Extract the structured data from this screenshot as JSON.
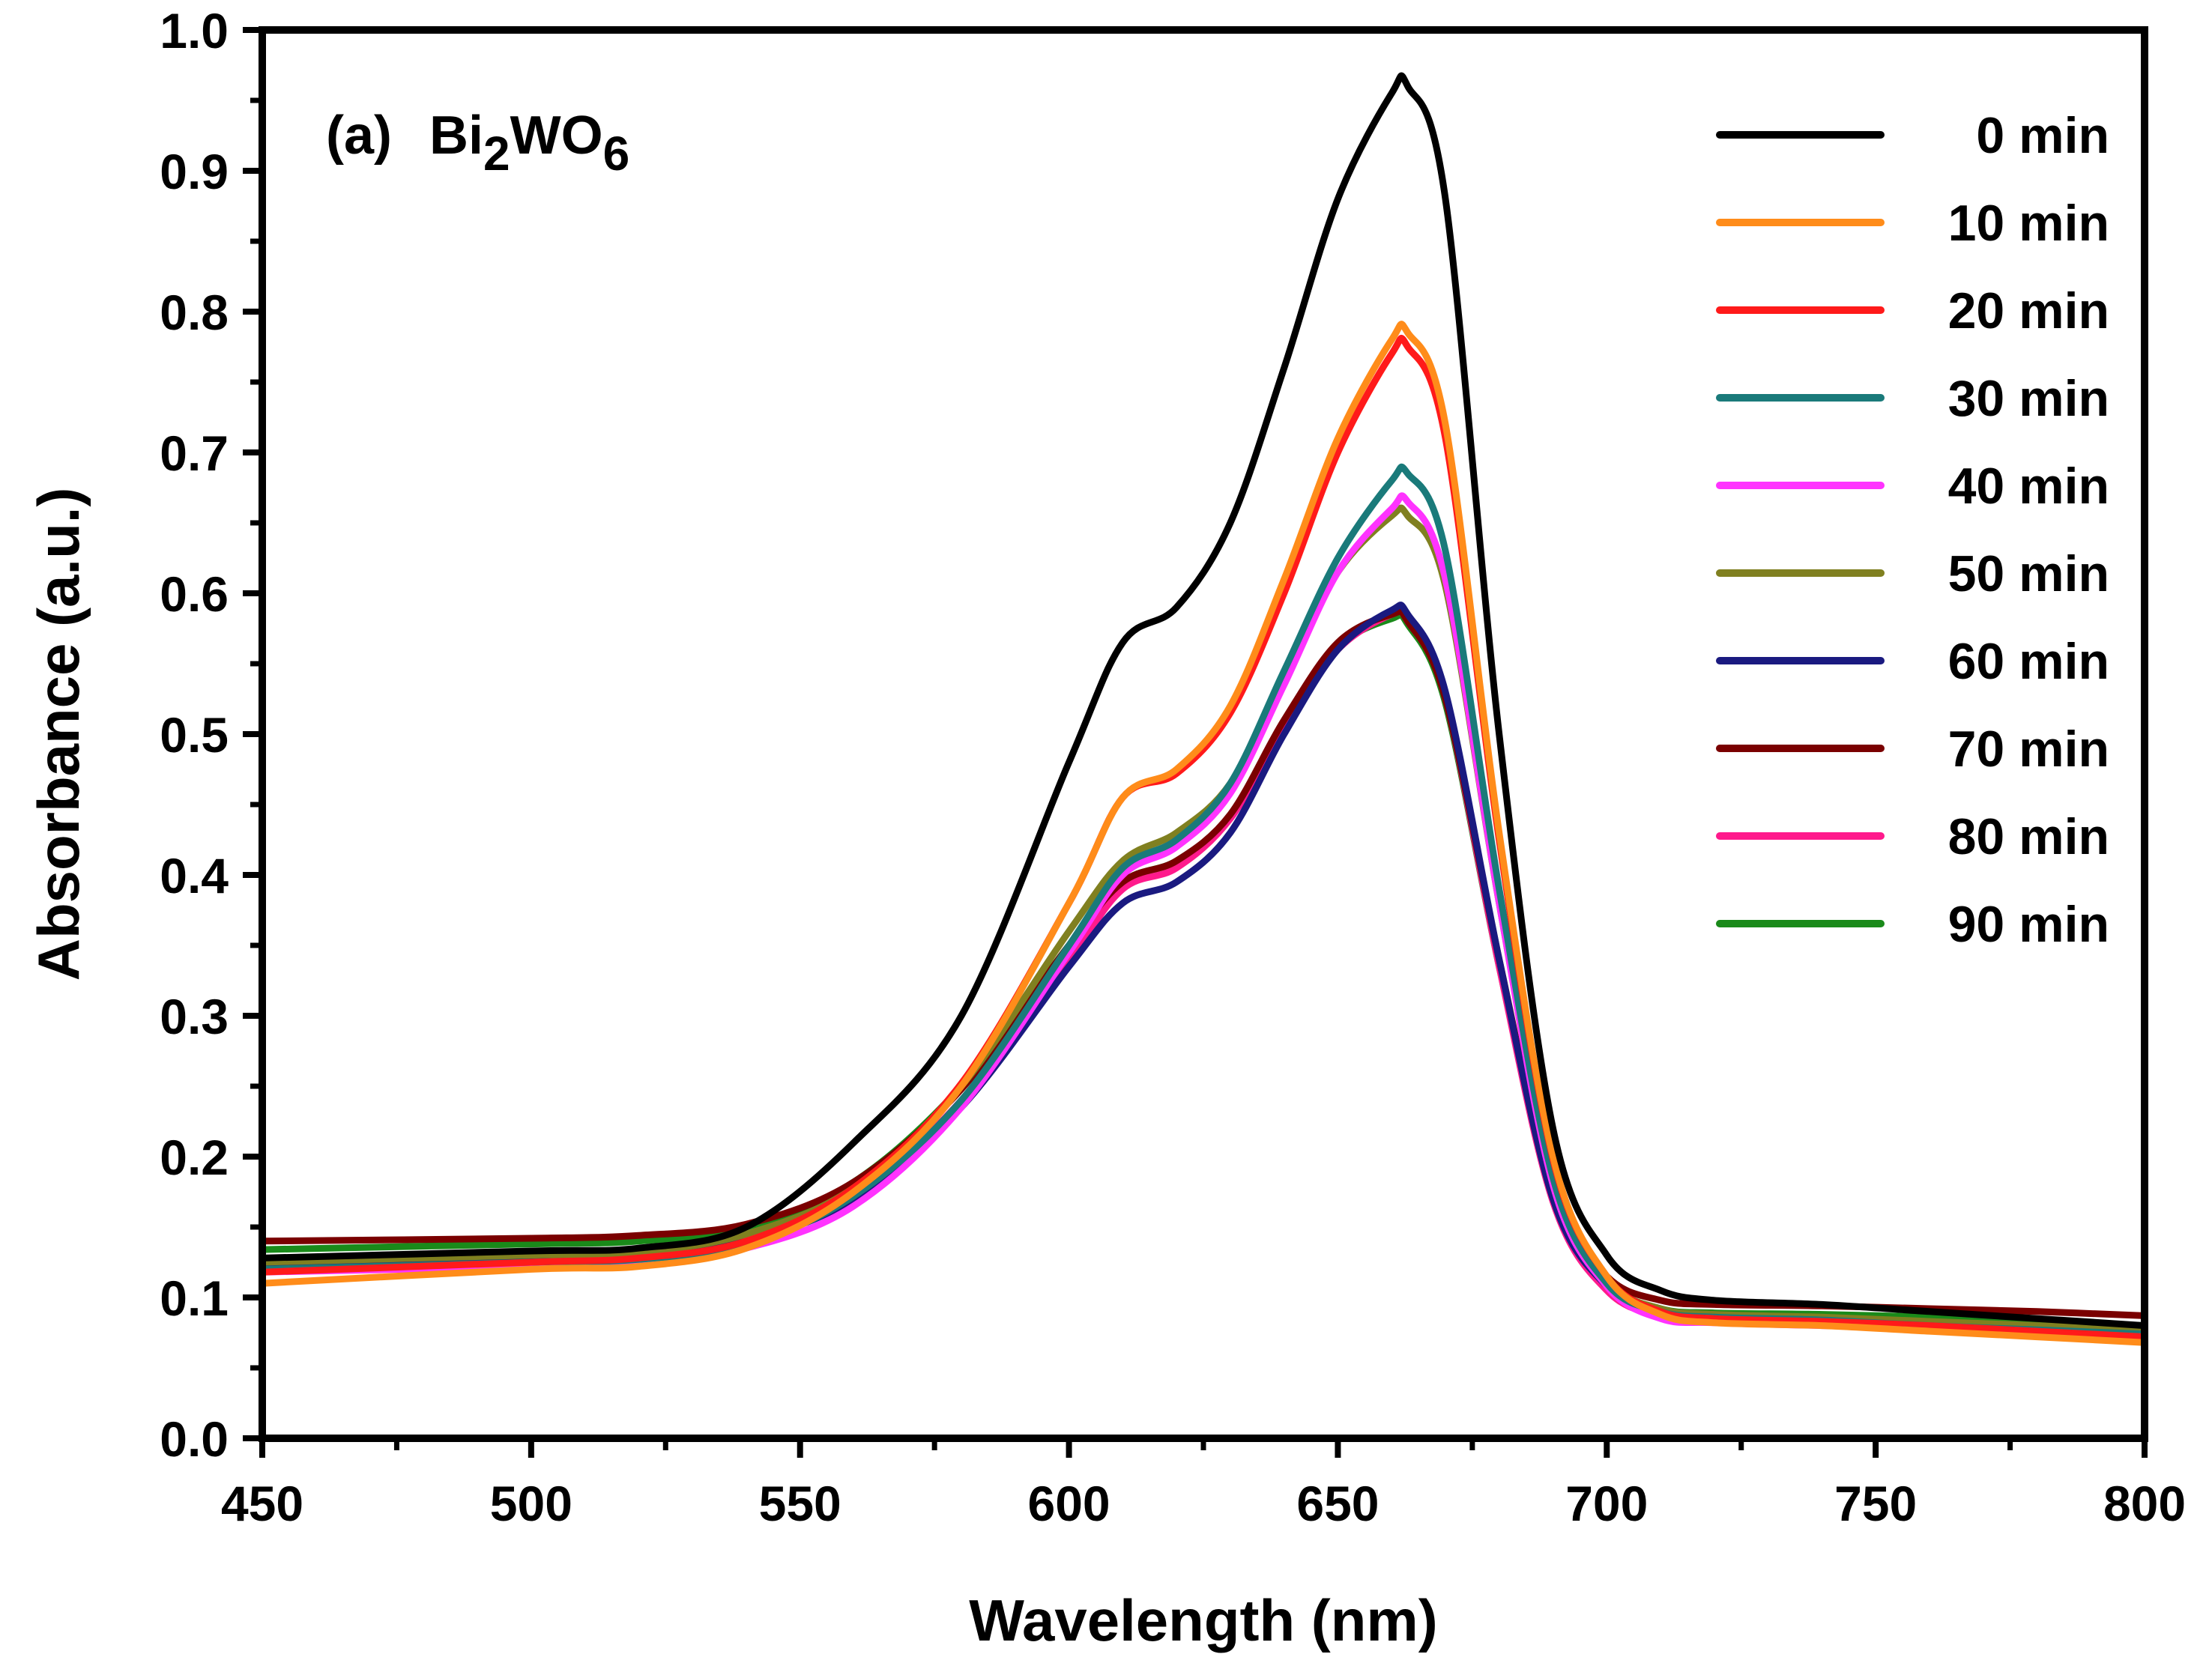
{
  "chart_data": {
    "type": "line",
    "panel_label": "(a)",
    "compound": {
      "base": "Bi",
      "sub1": "2",
      "mid": "WO",
      "sub2": "6"
    },
    "xlabel": "Wavelength (nm)",
    "ylabel": "Absorbance (a.u.)",
    "xlim": [
      450,
      800
    ],
    "ylim": [
      0.0,
      1.0
    ],
    "xticks": [
      450,
      500,
      550,
      600,
      650,
      700,
      750,
      800
    ],
    "xtick_labels": [
      "450",
      "500",
      "550",
      "600",
      "650",
      "700",
      "750",
      "800"
    ],
    "yticks": [
      0.0,
      0.1,
      0.2,
      0.3,
      0.4,
      0.5,
      0.6,
      0.7,
      0.8,
      0.9,
      1.0
    ],
    "ytick_labels": [
      "0.0",
      "0.1",
      "0.2",
      "0.3",
      "0.4",
      "0.5",
      "0.6",
      "0.7",
      "0.8",
      "0.9",
      "1.0"
    ],
    "legend_position": "top-right",
    "x": [
      450,
      500,
      520,
      540,
      560,
      580,
      600,
      610,
      620,
      630,
      640,
      650,
      660,
      663,
      670,
      680,
      690,
      700,
      710,
      720,
      740,
      760,
      780,
      800
    ],
    "series": [
      {
        "name": "0 min",
        "color": "#000000",
        "values": [
          0.128,
          0.133,
          0.135,
          0.15,
          0.21,
          0.3,
          0.48,
          0.565,
          0.59,
          0.65,
          0.76,
          0.88,
          0.955,
          0.96,
          0.88,
          0.5,
          0.22,
          0.13,
          0.105,
          0.098,
          0.095,
          0.09,
          0.085,
          0.08
        ]
      },
      {
        "name": "10 min",
        "color": "#ff8c1a",
        "values": [
          0.11,
          0.12,
          0.122,
          0.135,
          0.175,
          0.25,
          0.38,
          0.455,
          0.475,
          0.52,
          0.61,
          0.71,
          0.78,
          0.785,
          0.72,
          0.43,
          0.2,
          0.115,
          0.088,
          0.082,
          0.08,
          0.076,
          0.072,
          0.068
        ]
      },
      {
        "name": "20 min",
        "color": "#ff1a1a",
        "values": [
          0.118,
          0.125,
          0.128,
          0.14,
          0.178,
          0.252,
          0.38,
          0.455,
          0.472,
          0.515,
          0.6,
          0.7,
          0.77,
          0.775,
          0.71,
          0.425,
          0.198,
          0.115,
          0.09,
          0.085,
          0.083,
          0.08,
          0.076,
          0.072
        ]
      },
      {
        "name": "30 min",
        "color": "#1a7a7a",
        "values": [
          0.12,
          0.125,
          0.127,
          0.138,
          0.172,
          0.24,
          0.35,
          0.405,
          0.425,
          0.465,
          0.545,
          0.625,
          0.68,
          0.685,
          0.63,
          0.39,
          0.185,
          0.11,
          0.09,
          0.086,
          0.084,
          0.08,
          0.077,
          0.074
        ]
      },
      {
        "name": "40 min",
        "color": "#ff33ff",
        "values": [
          0.118,
          0.122,
          0.125,
          0.135,
          0.165,
          0.235,
          0.345,
          0.4,
          0.42,
          0.458,
          0.535,
          0.615,
          0.66,
          0.665,
          0.61,
          0.38,
          0.18,
          0.108,
          0.085,
          0.082,
          0.08,
          0.078,
          0.075,
          0.072
        ]
      },
      {
        "name": "50 min",
        "color": "#808020",
        "values": [
          0.125,
          0.13,
          0.132,
          0.145,
          0.178,
          0.25,
          0.36,
          0.41,
          0.43,
          0.465,
          0.54,
          0.615,
          0.655,
          0.655,
          0.605,
          0.38,
          0.182,
          0.112,
          0.092,
          0.088,
          0.086,
          0.083,
          0.08,
          0.077
        ]
      },
      {
        "name": "60 min",
        "color": "#1a1a80",
        "values": [
          0.122,
          0.128,
          0.13,
          0.14,
          0.17,
          0.235,
          0.335,
          0.38,
          0.395,
          0.43,
          0.5,
          0.56,
          0.588,
          0.585,
          0.53,
          0.34,
          0.17,
          0.108,
          0.088,
          0.085,
          0.084,
          0.082,
          0.079,
          0.076
        ]
      },
      {
        "name": "70 min",
        "color": "#7a0000",
        "values": [
          0.14,
          0.142,
          0.144,
          0.152,
          0.182,
          0.248,
          0.35,
          0.395,
          0.41,
          0.443,
          0.51,
          0.565,
          0.585,
          0.58,
          0.525,
          0.34,
          0.175,
          0.115,
          0.098,
          0.095,
          0.094,
          0.092,
          0.09,
          0.087
        ]
      },
      {
        "name": "80 min",
        "color": "#ff1a8c",
        "values": [
          0.124,
          0.128,
          0.13,
          0.14,
          0.172,
          0.24,
          0.34,
          0.39,
          0.405,
          0.44,
          0.505,
          0.56,
          0.585,
          0.58,
          0.525,
          0.335,
          0.168,
          0.105,
          0.087,
          0.084,
          0.083,
          0.081,
          0.078,
          0.075
        ]
      },
      {
        "name": "90 min",
        "color": "#1a8a1a",
        "values": [
          0.134,
          0.138,
          0.14,
          0.15,
          0.182,
          0.25,
          0.35,
          0.395,
          0.41,
          0.442,
          0.508,
          0.562,
          0.582,
          0.578,
          0.522,
          0.335,
          0.172,
          0.11,
          0.092,
          0.089,
          0.088,
          0.086,
          0.083,
          0.08
        ]
      }
    ]
  }
}
